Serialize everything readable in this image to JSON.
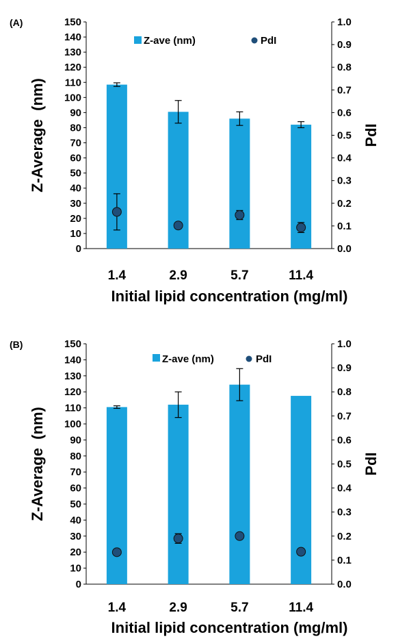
{
  "chart_data": [
    {
      "type": "bar",
      "panel_label": "(A)",
      "categories": [
        "1.4",
        "2.9",
        "5.7",
        "11.4"
      ],
      "xlabel": "Initial lipid concentration (mg/ml)",
      "ylabel": "Z-Average  (nm)",
      "y2label": "PdI",
      "ylim": [
        0,
        150
      ],
      "y2lim": [
        0,
        1.0
      ],
      "yticks": [
        "0",
        "10",
        "20",
        "30",
        "40",
        "50",
        "60",
        "70",
        "80",
        "90",
        "100",
        "110",
        "120",
        "130",
        "140",
        "150"
      ],
      "y2ticks": [
        "0.0",
        "0.1",
        "0.2",
        "0.3",
        "0.4",
        "0.5",
        "0.6",
        "0.7",
        "0.8",
        "0.9",
        "1.0"
      ],
      "legend": {
        "position": "top",
        "entries": [
          "Z-ave (nm)",
          "PdI"
        ]
      },
      "series": [
        {
          "name": "Z-ave (nm)",
          "kind": "bar",
          "color": "#1aa3dd",
          "values": [
            108.5,
            90.5,
            86,
            82
          ],
          "errors": [
            1.2,
            7.5,
            4.5,
            2
          ]
        },
        {
          "name": "PdI",
          "kind": "point",
          "color": "#1f4e79",
          "values": [
            0.162,
            0.102,
            0.148,
            0.093
          ],
          "errors": [
            0.08,
            0.005,
            0.02,
            0.022
          ]
        }
      ]
    },
    {
      "type": "bar",
      "panel_label": "(B)",
      "categories": [
        "1.4",
        "2.9",
        "5.7",
        "11.4"
      ],
      "xlabel": "Initial lipid concentration (mg/ml)",
      "ylabel": "Z-Average  (nm)",
      "y2label": "PdI",
      "ylim": [
        0,
        150
      ],
      "y2lim": [
        0,
        1.0
      ],
      "yticks": [
        "0",
        "10",
        "20",
        "30",
        "40",
        "50",
        "60",
        "70",
        "80",
        "90",
        "100",
        "110",
        "120",
        "130",
        "140",
        "150"
      ],
      "y2ticks": [
        "0.0",
        "0.1",
        "0.2",
        "0.3",
        "0.4",
        "0.5",
        "0.6",
        "0.7",
        "0.8",
        "0.9",
        "1.0"
      ],
      "legend": {
        "position": "top",
        "entries": [
          "Z-ave (nm)",
          "PdI"
        ]
      },
      "series": [
        {
          "name": "Z-ave (nm)",
          "kind": "bar",
          "color": "#1aa3dd",
          "values": [
            110.5,
            112,
            124.5,
            117.5
          ],
          "errors": [
            0.8,
            8,
            10,
            0
          ]
        },
        {
          "name": "PdI",
          "kind": "point",
          "color": "#1f4e79",
          "values": [
            0.133,
            0.19,
            0.2,
            0.135
          ],
          "errors": [
            0.005,
            0.02,
            0.005,
            0.004
          ]
        }
      ]
    }
  ]
}
